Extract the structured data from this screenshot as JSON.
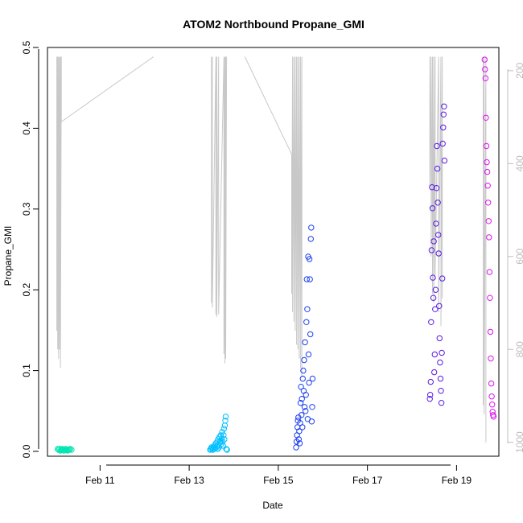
{
  "chart_data": {
    "type": "scatter",
    "title": "ATOM2 Northbound Propane_GMI",
    "xlabel": "Date",
    "ylabel": "Propane_GMI",
    "xlim": [
      9.82,
      19.95
    ],
    "ylim": [
      -0.006,
      0.5
    ],
    "x_ticks": [
      11,
      13,
      15,
      17,
      19
    ],
    "x_tick_labels": [
      "Feb 11",
      "Feb 13",
      "Feb 15",
      "Feb 17",
      "Feb 19"
    ],
    "y_ticks": [
      0.0,
      0.1,
      0.2,
      0.3,
      0.4,
      0.5
    ],
    "y_tick_labels": [
      "0.0",
      "0.1",
      "0.2",
      "0.3",
      "0.4",
      "0.5"
    ],
    "right_axis": {
      "label": "",
      "lim": [
        1030,
        150
      ],
      "ticks": [
        200,
        400,
        600,
        800,
        1000
      ],
      "tick_labels": [
        "200",
        "400",
        "600",
        "800",
        "1000"
      ],
      "color": "#bdbdbd"
    },
    "grid": false,
    "legend": "none",
    "series": [
      {
        "color": "#00e5b0",
        "points": [
          [
            10.05,
            0.003
          ],
          [
            10.07,
            0.002
          ],
          [
            10.09,
            0.003
          ],
          [
            10.11,
            0.001
          ],
          [
            10.13,
            0.002
          ],
          [
            10.15,
            0.003
          ],
          [
            10.17,
            0.002
          ],
          [
            10.19,
            0.001
          ],
          [
            10.21,
            0.002
          ],
          [
            10.23,
            0.003
          ],
          [
            10.25,
            0.002
          ],
          [
            10.27,
            0.001
          ],
          [
            10.29,
            0.002
          ],
          [
            10.31,
            0.002
          ],
          [
            10.33,
            0.003
          ],
          [
            10.36,
            0.002
          ]
        ]
      },
      {
        "color": "#00bfff",
        "points": [
          [
            13.47,
            0.002
          ],
          [
            13.49,
            0.003
          ],
          [
            13.5,
            0.005
          ],
          [
            13.52,
            0.004
          ],
          [
            13.53,
            0.002
          ],
          [
            13.55,
            0.006
          ],
          [
            13.56,
            0.003
          ],
          [
            13.58,
            0.008
          ],
          [
            13.59,
            0.004
          ],
          [
            13.6,
            0.01
          ],
          [
            13.62,
            0.006
          ],
          [
            13.63,
            0.012
          ],
          [
            13.64,
            0.003
          ],
          [
            13.65,
            0.015
          ],
          [
            13.66,
            0.007
          ],
          [
            13.67,
            0.005
          ],
          [
            13.68,
            0.018
          ],
          [
            13.69,
            0.011
          ],
          [
            13.7,
            0.013
          ],
          [
            13.71,
            0.02
          ],
          [
            13.72,
            0.009
          ],
          [
            13.73,
            0.016
          ],
          [
            13.74,
            0.024
          ],
          [
            13.75,
            0.012
          ],
          [
            13.76,
            0.007
          ],
          [
            13.77,
            0.02
          ],
          [
            13.78,
            0.028
          ],
          [
            13.79,
            0.015
          ],
          [
            13.8,
            0.032
          ],
          [
            13.81,
            0.038
          ],
          [
            13.82,
            0.043
          ],
          [
            13.83,
            0.003
          ],
          [
            13.85,
            0.002
          ]
        ]
      },
      {
        "color": "#1c3ff0",
        "points": [
          [
            15.4,
            0.005
          ],
          [
            15.41,
            0.012
          ],
          [
            15.42,
            0.02
          ],
          [
            15.43,
            0.03
          ],
          [
            15.44,
            0.038
          ],
          [
            15.45,
            0.042
          ],
          [
            15.46,
            0.015
          ],
          [
            15.47,
            0.025
          ],
          [
            15.48,
            0.01
          ],
          [
            15.49,
            0.035
          ],
          [
            15.5,
            0.06
          ],
          [
            15.51,
            0.08
          ],
          [
            15.52,
            0.045
          ],
          [
            15.53,
            0.065
          ],
          [
            15.54,
            0.03
          ],
          [
            15.55,
            0.09
          ],
          [
            15.56,
            0.1
          ],
          [
            15.57,
            0.075
          ],
          [
            15.58,
            0.113
          ],
          [
            15.59,
            0.055
          ],
          [
            15.6,
            0.135
          ],
          [
            15.61,
            0.05
          ],
          [
            15.62,
            0.07
          ],
          [
            15.63,
            0.16
          ],
          [
            15.64,
            0.213
          ],
          [
            15.65,
            0.176
          ],
          [
            15.66,
            0.04
          ],
          [
            15.67,
            0.241
          ],
          [
            15.68,
            0.12
          ],
          [
            15.69,
            0.085
          ],
          [
            15.7,
            0.238
          ],
          [
            15.71,
            0.213
          ],
          [
            15.72,
            0.145
          ],
          [
            15.73,
            0.263
          ],
          [
            15.74,
            0.277
          ],
          [
            15.75,
            0.037
          ],
          [
            15.76,
            0.055
          ],
          [
            15.77,
            0.09
          ]
        ]
      },
      {
        "color": "#5a19e6",
        "points": [
          [
            18.4,
            0.065
          ],
          [
            18.41,
            0.07
          ],
          [
            18.42,
            0.086
          ],
          [
            18.43,
            0.16
          ],
          [
            18.44,
            0.249
          ],
          [
            18.45,
            0.327
          ],
          [
            18.46,
            0.301
          ],
          [
            18.47,
            0.215
          ],
          [
            18.48,
            0.19
          ],
          [
            18.49,
            0.26
          ],
          [
            18.5,
            0.098
          ],
          [
            18.51,
            0.12
          ],
          [
            18.52,
            0.176
          ],
          [
            18.53,
            0.2
          ],
          [
            18.54,
            0.282
          ],
          [
            18.55,
            0.326
          ],
          [
            18.56,
            0.378
          ],
          [
            18.57,
            0.35
          ],
          [
            18.58,
            0.308
          ],
          [
            18.59,
            0.268
          ],
          [
            18.6,
            0.245
          ],
          [
            18.61,
            0.18
          ],
          [
            18.62,
            0.14
          ],
          [
            18.63,
            0.11
          ],
          [
            18.64,
            0.09
          ],
          [
            18.65,
            0.075
          ],
          [
            18.66,
            0.06
          ],
          [
            18.67,
            0.122
          ],
          [
            18.68,
            0.214
          ],
          [
            18.69,
            0.381
          ],
          [
            18.7,
            0.401
          ],
          [
            18.71,
            0.417
          ],
          [
            18.72,
            0.427
          ],
          [
            18.73,
            0.36
          ]
        ]
      },
      {
        "color": "#e010f0",
        "points": [
          [
            19.63,
            0.485
          ],
          [
            19.64,
            0.473
          ],
          [
            19.65,
            0.462
          ],
          [
            19.66,
            0.413
          ],
          [
            19.67,
            0.378
          ],
          [
            19.68,
            0.358
          ],
          [
            19.69,
            0.346
          ],
          [
            19.7,
            0.329
          ],
          [
            19.71,
            0.308
          ],
          [
            19.72,
            0.285
          ],
          [
            19.73,
            0.265
          ],
          [
            19.74,
            0.222
          ],
          [
            19.75,
            0.19
          ],
          [
            19.76,
            0.148
          ],
          [
            19.77,
            0.115
          ],
          [
            19.78,
            0.084
          ],
          [
            19.79,
            0.068
          ],
          [
            19.8,
            0.058
          ],
          [
            19.81,
            0.049
          ],
          [
            19.82,
            0.045
          ],
          [
            19.83,
            0.043
          ]
        ]
      }
    ],
    "pressure_track": {
      "color": "#c8c8c8",
      "segments": [
        [
          [
            10.03,
            170
          ],
          [
            10.03,
            760
          ],
          [
            10.05,
            170
          ],
          [
            10.05,
            800
          ],
          [
            10.07,
            170
          ],
          [
            10.07,
            820
          ],
          [
            10.09,
            170
          ],
          [
            10.09,
            800
          ],
          [
            10.11,
            170
          ],
          [
            10.11,
            840
          ],
          [
            10.13,
            170
          ],
          [
            10.13,
            310
          ]
        ],
        [
          [
            10.13,
            310
          ],
          [
            12.2,
            170
          ]
        ],
        [
          [
            13.5,
            170
          ],
          [
            13.5,
            700
          ],
          [
            13.52,
            170
          ],
          [
            13.52,
            710
          ],
          [
            13.6,
            170
          ],
          [
            13.6,
            725
          ],
          [
            13.62,
            170
          ],
          [
            13.62,
            730
          ],
          [
            13.66,
            170
          ],
          [
            13.66,
            725
          ],
          [
            13.78,
            170
          ],
          [
            13.78,
            810
          ],
          [
            13.8,
            170
          ],
          [
            13.8,
            830
          ],
          [
            13.82,
            170
          ],
          [
            13.82,
            820
          ],
          [
            13.84,
            170
          ]
        ],
        [
          [
            14.25,
            170
          ],
          [
            15.3,
            380
          ]
        ],
        [
          [
            15.3,
            380
          ],
          [
            15.3,
            680
          ],
          [
            15.32,
            170
          ],
          [
            15.32,
            720
          ],
          [
            15.35,
            170
          ],
          [
            15.35,
            740
          ],
          [
            15.38,
            170
          ],
          [
            15.38,
            760
          ],
          [
            15.41,
            170
          ],
          [
            15.41,
            790
          ],
          [
            15.44,
            170
          ],
          [
            15.44,
            800
          ],
          [
            15.47,
            170
          ],
          [
            15.47,
            820
          ],
          [
            15.5,
            170
          ],
          [
            15.5,
            840
          ],
          [
            15.53,
            170
          ],
          [
            15.53,
            860
          ]
        ],
        [
          [
            18.4,
            170
          ],
          [
            18.4,
            450
          ],
          [
            18.43,
            170
          ],
          [
            18.43,
            600
          ],
          [
            18.46,
            170
          ],
          [
            18.46,
            680
          ],
          [
            18.49,
            170
          ],
          [
            18.49,
            700
          ],
          [
            18.52,
            170
          ],
          [
            18.52,
            640
          ],
          [
            18.6,
            170
          ],
          [
            18.6,
            720
          ],
          [
            18.65,
            170
          ],
          [
            18.65,
            750
          ],
          [
            18.68,
            170
          ],
          [
            18.68,
            690
          ]
        ],
        [
          [
            19.6,
            170
          ],
          [
            19.6,
            920
          ],
          [
            19.62,
            170
          ],
          [
            19.62,
            940
          ],
          [
            19.66,
            170
          ],
          [
            19.66,
            1000
          ]
        ]
      ]
    }
  }
}
